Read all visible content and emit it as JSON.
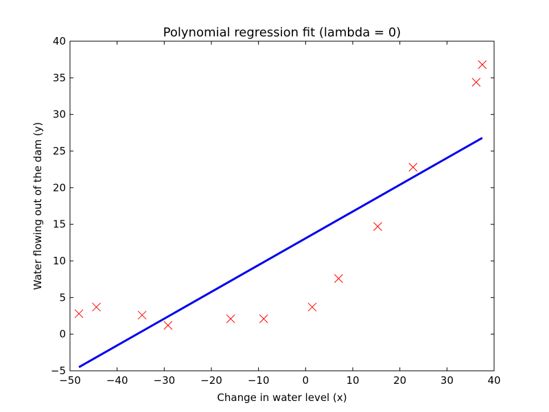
{
  "chart_data": {
    "type": "scatter",
    "title": "Polynomial regression fit (lambda = 0)",
    "xlabel": "Change in water level (x)",
    "ylabel": "Water flowing out of the dam (y)",
    "xlim": [
      -50,
      40
    ],
    "ylim": [
      -5,
      40
    ],
    "xticks": [
      -50,
      -40,
      -30,
      -20,
      -10,
      0,
      10,
      20,
      30,
      40
    ],
    "yticks": [
      -5,
      0,
      5,
      10,
      15,
      20,
      25,
      30,
      35,
      40
    ],
    "xtick_labels": [
      "−50",
      "−40",
      "−30",
      "−20",
      "−10",
      "0",
      "10",
      "20",
      "30",
      "40"
    ],
    "ytick_labels": [
      "−5",
      "0",
      "5",
      "10",
      "15",
      "20",
      "25",
      "30",
      "35",
      "40"
    ],
    "grid": false,
    "series": [
      {
        "kind": "points",
        "marker": "x",
        "color": "#ff0000",
        "x": [
          -48.1,
          -44.4,
          -34.7,
          -29.2,
          -15.9,
          -8.9,
          1.4,
          7.0,
          15.3,
          22.8,
          36.2,
          37.5
        ],
        "y": [
          2.8,
          3.7,
          2.6,
          1.2,
          2.1,
          2.1,
          3.7,
          7.6,
          14.7,
          22.8,
          34.4,
          36.8
        ]
      },
      {
        "kind": "line",
        "color": "#0000ee",
        "x": [
          -48.1,
          37.5
        ],
        "y": [
          -4.5,
          26.8
        ]
      }
    ]
  }
}
